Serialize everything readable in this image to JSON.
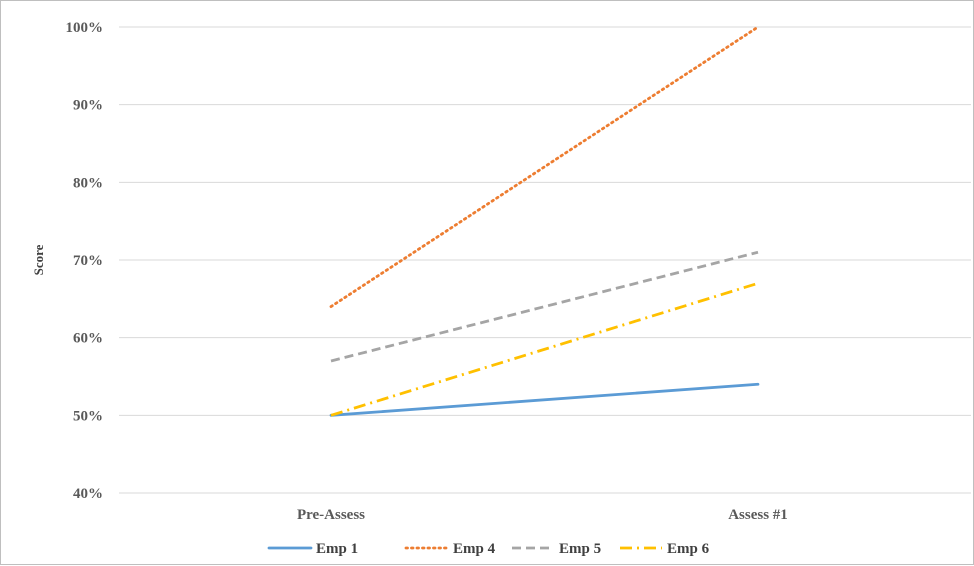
{
  "chart_data": {
    "type": "line",
    "title": "",
    "xlabel": "",
    "ylabel": "Score",
    "categories": [
      "Pre-Assess",
      "Assess #1"
    ],
    "ylim": [
      40,
      100
    ],
    "yticks": [
      "40%",
      "50%",
      "60%",
      "70%",
      "80%",
      "90%",
      "100%"
    ],
    "grid": true,
    "legend": "bottom",
    "series": [
      {
        "name": "Emp 1",
        "values": [
          50,
          54
        ],
        "color": "#5b9bd5",
        "dash": "solid"
      },
      {
        "name": "Emp 4",
        "values": [
          64,
          100
        ],
        "color": "#ed7d31",
        "dash": "dotted"
      },
      {
        "name": "Emp 5",
        "values": [
          57,
          71
        ],
        "color": "#a5a5a5",
        "dash": "dashed"
      },
      {
        "name": "Emp 6",
        "values": [
          50,
          67
        ],
        "color": "#ffc000",
        "dash": "dash-dot"
      }
    ]
  }
}
